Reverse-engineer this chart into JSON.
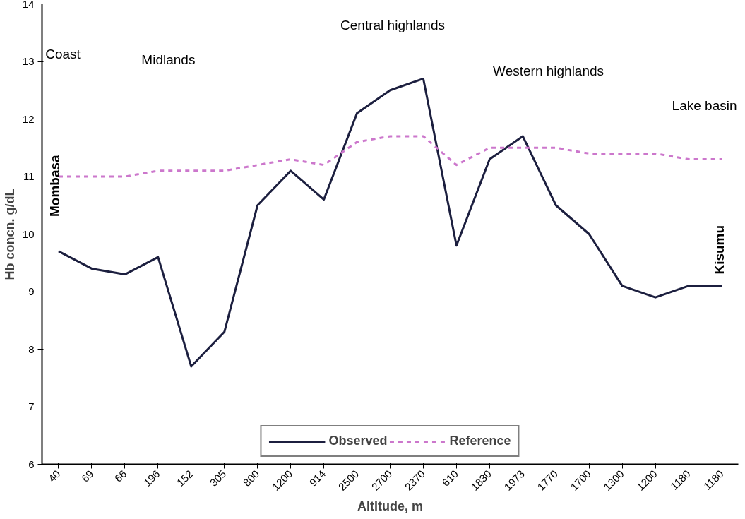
{
  "chart_data": {
    "type": "line",
    "xlabel": "Altitude, m",
    "ylabel": "Hb concn. g/dL",
    "categories": [
      "40",
      "69",
      "66",
      "196",
      "152",
      "305",
      "800",
      "1200",
      "914",
      "2500",
      "2700",
      "2370",
      "610",
      "1830",
      "1973",
      "1770",
      "1700",
      "1300",
      "1200",
      "1180",
      "1180"
    ],
    "series": [
      {
        "name": "Observed",
        "color": "#1c1f3f",
        "line_style": "solid",
        "values": [
          9.7,
          9.4,
          9.3,
          9.6,
          7.7,
          8.3,
          10.5,
          11.1,
          10.6,
          12.1,
          12.5,
          12.7,
          9.8,
          11.3,
          11.7,
          10.5,
          10.0,
          9.1,
          8.9,
          9.1,
          9.1
        ]
      },
      {
        "name": "Reference",
        "color": "#cc77cc",
        "line_style": "dashed",
        "values": [
          11.0,
          11.0,
          11.0,
          11.1,
          11.1,
          11.1,
          11.2,
          11.3,
          11.2,
          11.6,
          11.7,
          11.7,
          11.2,
          11.5,
          11.5,
          11.5,
          11.4,
          11.4,
          11.4,
          11.3,
          11.3
        ]
      }
    ],
    "ylim": [
      6,
      14
    ],
    "yticks": [
      6,
      7,
      8,
      9,
      10,
      11,
      12,
      13,
      14
    ],
    "grid": false,
    "legend": "bottom",
    "marker": "none",
    "annotations": [
      "Coast",
      "Midlands",
      "Central highlands",
      "Western highlands",
      "Lake basin",
      "Mombasa",
      "Kisumu"
    ]
  }
}
